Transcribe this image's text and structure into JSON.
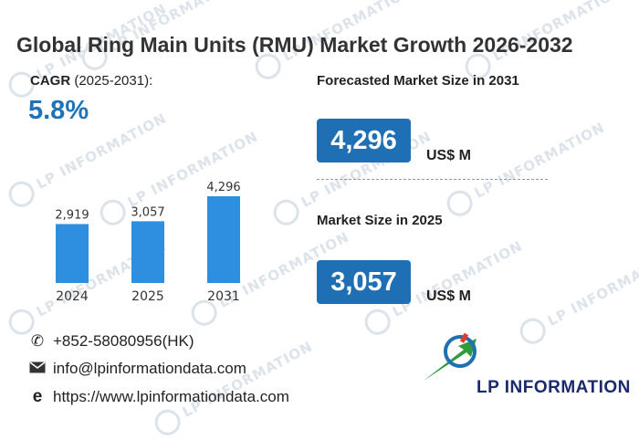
{
  "title": "Global Ring Main Units (RMU) Market Growth 2026-2032",
  "cagr": {
    "label": "CAGR",
    "period": "(2025-2031):",
    "value": "5.8%"
  },
  "chart_data": {
    "type": "bar",
    "categories": [
      "2024",
      "2025",
      "2031"
    ],
    "values": [
      2919,
      3057,
      4296
    ],
    "value_labels": [
      "2,919",
      "3,057",
      "4,296"
    ],
    "bar_color": "#2e8ee0",
    "ylim": [
      0,
      4296
    ]
  },
  "forecast": {
    "label": "Forecasted Market Size in 2031",
    "value": "4,296",
    "unit": "US$ M"
  },
  "current": {
    "label": "Market Size in 2025",
    "value": "3,057",
    "unit": "US$ M"
  },
  "contacts": {
    "phone": "+852-58080956(HK)",
    "email": "info@lpinformationdata.com",
    "website": "https://www.lpinformationdata.com"
  },
  "brand": {
    "name": "LP INFORMATION",
    "watermark": "LP INFORMATION",
    "accent": "#1f6fb5"
  }
}
